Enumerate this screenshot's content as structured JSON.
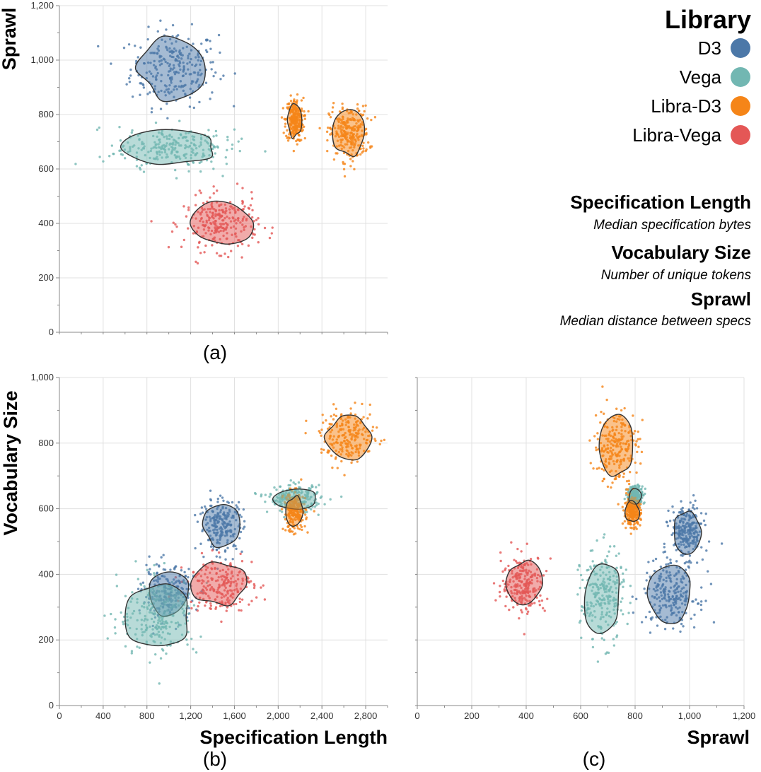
{
  "colors": {
    "D3": "#4c78a8",
    "Vega": "#72b7b2",
    "Libra-D3": "#f58518",
    "Libra-Vega": "#e45756",
    "grid": "#e0e0e0",
    "axis": "#888888"
  },
  "legend": {
    "title": "Library",
    "entries": [
      "D3",
      "Vega",
      "Libra-D3",
      "Libra-Vega"
    ]
  },
  "metrics": [
    {
      "title": "Specification Length",
      "desc": "Median specification bytes"
    },
    {
      "title": "Vocabulary Size",
      "desc": "Number of unique tokens"
    },
    {
      "title": "Sprawl",
      "desc": "Median distance between specs"
    }
  ],
  "panels": {
    "a": "(a)",
    "b": "(b)",
    "c": "(c)"
  },
  "chart_data": [
    {
      "type": "scatter",
      "panel": "a",
      "xlabel": "",
      "ylabel": "Sprawl",
      "ylim": [
        0,
        1200
      ],
      "xlim": [
        0,
        3000
      ],
      "y_ticks": [
        "0",
        "200",
        "400",
        "600",
        "800",
        "1,000",
        "1,200"
      ],
      "grid": true,
      "series": [
        {
          "name": "D3",
          "center": [
            1050,
            970
          ],
          "spread": [
            200,
            70
          ],
          "hull": [
            [
              720,
              960
            ],
            [
              1000,
              900
            ],
            [
              1250,
              960
            ],
            [
              1600,
              1060
            ],
            [
              1900,
              960
            ],
            [
              1700,
              880
            ],
            [
              1100,
              890
            ],
            [
              800,
              900
            ]
          ]
        },
        {
          "name": "Vega",
          "center": [
            1030,
            680
          ],
          "spread": [
            260,
            40
          ],
          "hull": [
            [
              650,
              690
            ],
            [
              900,
              720
            ],
            [
              1300,
              700
            ],
            [
              1700,
              700
            ],
            [
              1700,
              670
            ],
            [
              1300,
              660
            ],
            [
              950,
              630
            ],
            [
              700,
              640
            ]
          ]
        },
        {
          "name": "Libra-D3",
          "center": [
            2150,
            780
          ],
          "spread": [
            40,
            40
          ],
          "extra": [
            {
              "center": [
                2650,
                730
              ],
              "spread": [
                90,
                50
              ]
            }
          ]
        },
        {
          "name": "Libra-Vega",
          "center": [
            1480,
            400
          ],
          "spread": [
            170,
            50
          ]
        }
      ]
    },
    {
      "type": "scatter",
      "panel": "b",
      "xlabel": "Specification Length",
      "ylabel": "Vocabulary Size",
      "xlim": [
        0,
        3000
      ],
      "ylim": [
        0,
        1000
      ],
      "x_ticks": [
        "0",
        "400",
        "800",
        "1,200",
        "1,600",
        "2,000",
        "2,400",
        "2,800"
      ],
      "y_ticks": [
        "0",
        "200",
        "400",
        "600",
        "800",
        "1,000"
      ],
      "grid": true,
      "series": [
        {
          "name": "D3",
          "clusters": [
            {
              "center": [
                1000,
                340
              ],
              "spread": [
                120,
                40
              ]
            },
            {
              "center": [
                1480,
                550
              ],
              "spread": [
                100,
                40
              ]
            }
          ]
        },
        {
          "name": "Vega",
          "clusters": [
            {
              "center": [
                900,
                270
              ],
              "spread": [
                180,
                60
              ]
            },
            {
              "center": [
                2150,
                630
              ],
              "spread": [
                120,
                20
              ]
            }
          ]
        },
        {
          "name": "Libra-D3",
          "clusters": [
            {
              "center": [
                2150,
                590
              ],
              "spread": [
                50,
                30
              ]
            },
            {
              "center": [
                2650,
                820
              ],
              "spread": [
                130,
                40
              ]
            }
          ]
        },
        {
          "name": "Libra-Vega",
          "clusters": [
            {
              "center": [
                1470,
                370
              ],
              "spread": [
                150,
                40
              ]
            }
          ]
        }
      ]
    },
    {
      "type": "scatter",
      "panel": "c",
      "xlabel": "Sprawl",
      "ylabel": "",
      "xlim": [
        0,
        1200
      ],
      "ylim": [
        0,
        1000
      ],
      "x_ticks": [
        "0",
        "200",
        "400",
        "600",
        "800",
        "1,000",
        "1,200"
      ],
      "grid": true,
      "series": [
        {
          "name": "D3",
          "clusters": [
            {
              "center": [
                930,
                340
              ],
              "spread": [
                50,
                50
              ]
            },
            {
              "center": [
                990,
                530
              ],
              "spread": [
                30,
                40
              ]
            }
          ]
        },
        {
          "name": "Vega",
          "clusters": [
            {
              "center": [
                680,
                330
              ],
              "spread": [
                40,
                70
              ]
            },
            {
              "center": [
                800,
                640
              ],
              "spread": [
                15,
                15
              ]
            }
          ]
        },
        {
          "name": "Libra-D3",
          "clusters": [
            {
              "center": [
                730,
                790
              ],
              "spread": [
                40,
                60
              ]
            },
            {
              "center": [
                790,
                590
              ],
              "spread": [
                15,
                20
              ]
            }
          ]
        },
        {
          "name": "Libra-Vega",
          "clusters": [
            {
              "center": [
                390,
                370
              ],
              "spread": [
                40,
                45
              ]
            }
          ]
        }
      ]
    }
  ]
}
